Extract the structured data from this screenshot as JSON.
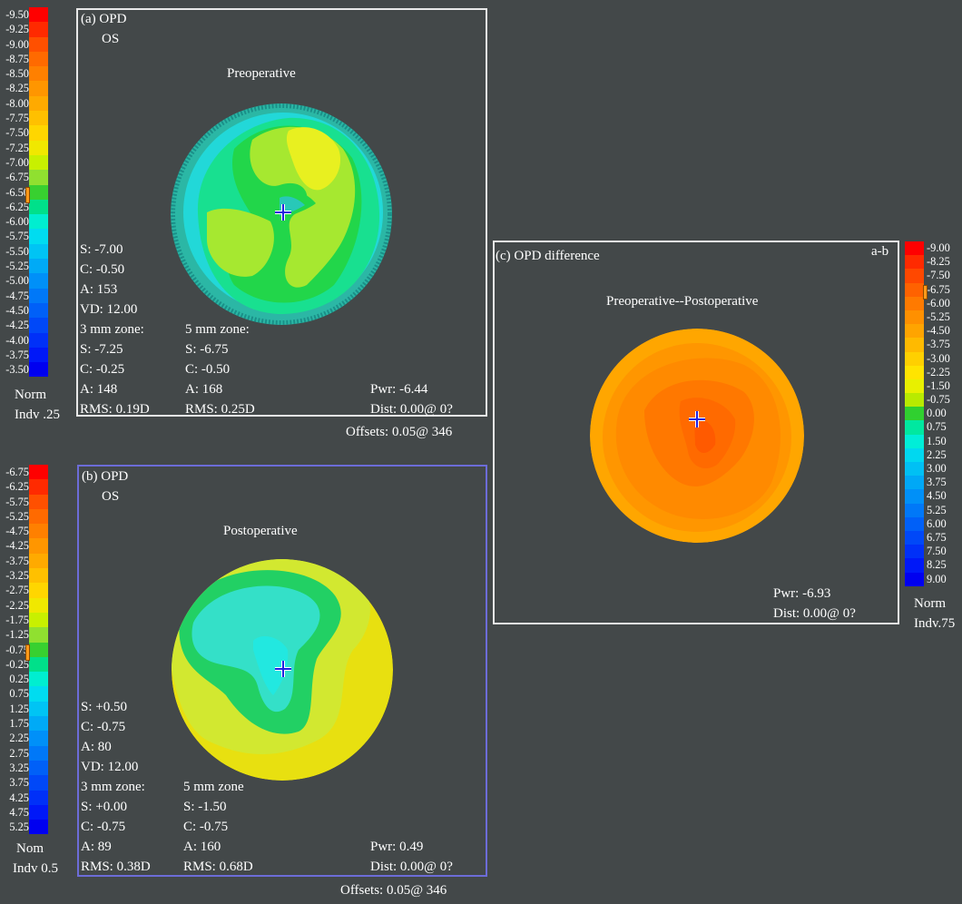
{
  "panel_a": {
    "title": "(a) OPD",
    "eye": "OS",
    "subtitle": "Preoperative",
    "lines": [
      "S: -7.00",
      "C: -0.50",
      "A: 153",
      "VD: 12.00",
      "3 mm zone:",
      "S: -7.25",
      "C: -0.25",
      "A: 148",
      "RMS: 0.19D"
    ],
    "zone5": [
      "5 mm zone:",
      "S: -6.75",
      "C: -0.50",
      "A: 168",
      "RMS: 0.25D"
    ],
    "pwr": "Pwr: -6.44",
    "dist": "Dist: 0.00@ 0?",
    "offsets": "Offsets: 0.05@ 346",
    "scale_ticks": [
      "-9.50",
      "-9.25",
      "-9.00",
      "-8.75",
      "-8.50",
      "-8.25",
      "-8.00",
      "-7.75",
      "-7.50",
      "-7.25",
      "-7.00",
      "-6.75",
      "-6.50",
      "-6.25",
      "-6.00",
      "-5.75",
      "-5.50",
      "-5.25",
      "-5.00",
      "-4.75",
      "-4.50",
      "-4.25",
      "-4.00",
      "-3.75",
      "-3.50"
    ],
    "scale_norm": "Norm",
    "scale_indv": "Indv .25"
  },
  "panel_b": {
    "title": "(b) OPD",
    "eye": "OS",
    "subtitle": "Postoperative",
    "lines": [
      "S: +0.50",
      "C: -0.75",
      "A: 80",
      "VD: 12.00",
      "3 mm zone:",
      "S: +0.00",
      "C: -0.75",
      "A: 89",
      "RMS: 0.38D"
    ],
    "zone5": [
      "5 mm zone",
      "S: -1.50",
      "C: -0.75",
      "A: 160",
      "RMS: 0.68D"
    ],
    "pwr": "Pwr: 0.49",
    "dist": "Dist: 0.00@ 0?",
    "offsets": "Offsets: 0.05@ 346",
    "scale_ticks": [
      "-6.75",
      "-6.25",
      "-5.75",
      "-5.25",
      "-4.75",
      "-4.25",
      "-3.75",
      "-3.25",
      "-2.75",
      "-2.25",
      "-1.75",
      "-1.25",
      "-0.75",
      "-0.25",
      "0.25",
      "0.75",
      "1.25",
      "1.75",
      "2.25",
      "2.75",
      "3.25",
      "3.75",
      "4.25",
      "4.75",
      "5.25"
    ],
    "scale_norm": "Nom",
    "scale_indv": "Indv 0.5"
  },
  "panel_c": {
    "title": "(c) OPD difference",
    "corner": "a-b",
    "subtitle": "Preoperative--Postoperative",
    "pwr": "Pwr: -6.93",
    "dist": "Dist: 0.00@ 0?",
    "scale_ticks": [
      "-9.00",
      "-8.25",
      "-7.50",
      "-6.75",
      "-6.00",
      "-5.25",
      "-4.50",
      "-3.75",
      "-3.00",
      "-2.25",
      "-1.50",
      "-0.75",
      "0.00",
      "0.75",
      "1.50",
      "2.25",
      "3.00",
      "3.75",
      "4.50",
      "5.25",
      "6.00",
      "6.75",
      "7.50",
      "8.25",
      "9.00"
    ],
    "scale_norm": "Norm",
    "scale_indv": "Indv.75"
  },
  "colors": {
    "background": "#434849",
    "scale": [
      "#ff0000",
      "#ff2a00",
      "#ff5000",
      "#ff6a00",
      "#ff8000",
      "#ff9600",
      "#ffaa00",
      "#ffc000",
      "#ffd600",
      "#f0e800",
      "#c8f000",
      "#90e030",
      "#38d030",
      "#00e08a",
      "#00eed0",
      "#00dcf0",
      "#00c4f4",
      "#00aaf6",
      "#0090f8",
      "#0078f8",
      "#0060f8",
      "#0048f8",
      "#0030f8",
      "#0018f8",
      "#0000f0"
    ],
    "scale_c": [
      "#ff0000",
      "#ff2a00",
      "#ff4800",
      "#ff6200",
      "#ff7a00",
      "#ff9000",
      "#ffa400",
      "#ffba00",
      "#ffd000",
      "#ffe400",
      "#e8f000",
      "#b8ea00",
      "#30d030",
      "#00e8a0",
      "#00eed8",
      "#00d8f0",
      "#00c0f4",
      "#00a8f6",
      "#0090f8",
      "#0078f8",
      "#0060f8",
      "#0048f8",
      "#0030f8",
      "#0018f8",
      "#0000f0"
    ],
    "frame_a": "#e8e8e8",
    "frame_b": "#6c6cd8",
    "frame_c": "#e8e8e8",
    "crosshair": "#2020e0"
  }
}
